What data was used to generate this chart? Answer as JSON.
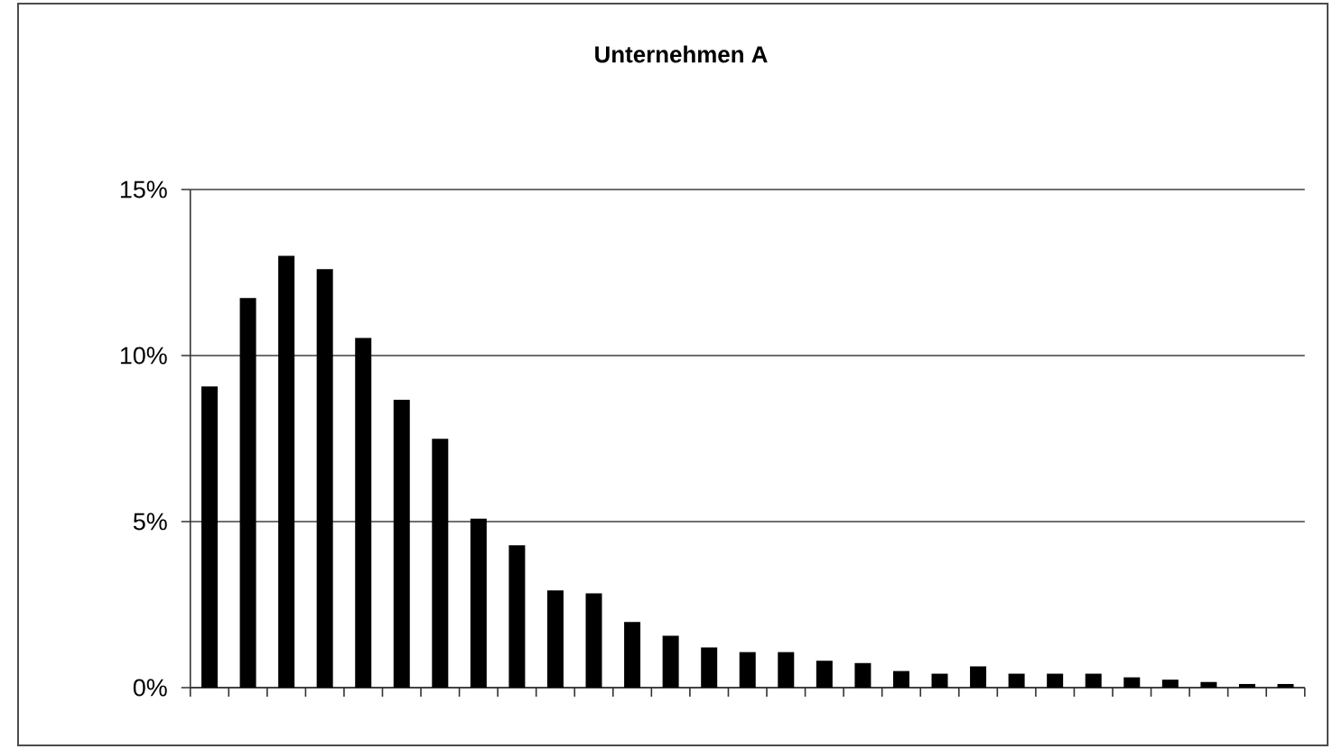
{
  "chart_data": {
    "type": "bar",
    "title": "Unternehmen A",
    "categories": [
      null,
      null,
      null,
      null,
      null,
      null,
      null,
      null,
      null,
      null,
      null,
      null,
      null,
      null,
      null,
      null,
      null,
      null,
      null,
      null,
      null,
      null,
      null,
      null,
      null,
      null,
      null,
      null,
      null
    ],
    "values": [
      9.07,
      11.73,
      13.0,
      12.6,
      10.53,
      8.67,
      7.49,
      5.09,
      4.29,
      2.93,
      2.84,
      1.98,
      1.56,
      1.21,
      1.07,
      1.07,
      0.81,
      0.74,
      0.5,
      0.42,
      0.64,
      0.42,
      0.42,
      0.42,
      0.31,
      0.24,
      0.17,
      0.11,
      0.11
    ],
    "color": "#000000",
    "ylim": [
      0,
      15
    ],
    "yticks": [
      {
        "value": 0,
        "label": "0%"
      },
      {
        "value": 5,
        "label": "5%"
      },
      {
        "value": 10,
        "label": "10%"
      },
      {
        "value": 15,
        "label": "15%"
      }
    ],
    "grid": "y"
  }
}
